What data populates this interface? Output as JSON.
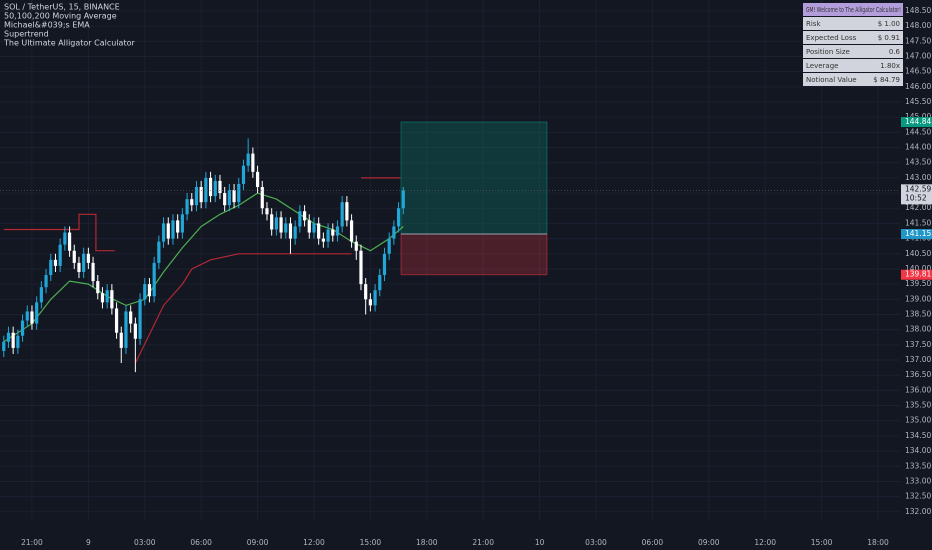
{
  "chart_data": {
    "type": "candlestick",
    "title": "SOL / TetherUS, 15, BINANCE",
    "indicators": [
      "50,100,200 Moving Average",
      "Michael&#039;s EMA",
      "Supertrend",
      "The Ultimate Alligator Calculator"
    ],
    "up_color": "#22a6d8",
    "down_color": "#ffffff",
    "xlim": [
      -1.7,
      46.17
    ],
    "ylim": [
      131.73,
      148.86
    ],
    "grid": true,
    "x": [
      -1.5,
      -1.25,
      -1,
      -0.75,
      -0.5,
      -0.25,
      0,
      0.25,
      0.5,
      0.75,
      1,
      1.25,
      1.5,
      1.75,
      2,
      2.25,
      2.5,
      2.75,
      3,
      3.25,
      3.5,
      3.75,
      4,
      4.25,
      4.5,
      4.75,
      5,
      5.25,
      5.5,
      5.75,
      6,
      6.25,
      6.5,
      6.75,
      7,
      7.25,
      7.5,
      7.75,
      8,
      8.25,
      8.5,
      8.75,
      9,
      9.25,
      9.5,
      9.75,
      10,
      10.25,
      10.5,
      10.75,
      11,
      11.25,
      11.5,
      11.75,
      12,
      12.25,
      12.5,
      12.75,
      13,
      13.25,
      13.5,
      13.75,
      14,
      14.25,
      14.5,
      14.75,
      15,
      15.25,
      15.5,
      15.75,
      16,
      16.25,
      16.5,
      16.75,
      17,
      17.25,
      17.5,
      17.75,
      18,
      18.25,
      18.5,
      18.75,
      19,
      19.25,
      19.5,
      19.75
    ],
    "ohlc": [
      [
        137.3,
        137.8,
        137.1,
        137.6
      ],
      [
        137.6,
        138.1,
        137.4,
        137.9
      ],
      [
        137.9,
        138.1,
        137.2,
        137.4
      ],
      [
        137.4,
        138.0,
        137.2,
        137.8
      ],
      [
        137.8,
        138.5,
        137.6,
        138.3
      ],
      [
        138.3,
        138.8,
        138.1,
        138.6
      ],
      [
        138.6,
        138.8,
        138.0,
        138.2
      ],
      [
        138.2,
        139.1,
        138.0,
        138.9
      ],
      [
        138.9,
        139.6,
        138.7,
        139.4
      ],
      [
        139.4,
        140.0,
        139.2,
        139.8
      ],
      [
        139.8,
        140.5,
        139.6,
        140.3
      ],
      [
        140.3,
        140.5,
        139.9,
        140.1
      ],
      [
        140.1,
        141.0,
        139.9,
        140.8
      ],
      [
        140.8,
        141.4,
        140.6,
        141.2
      ],
      [
        141.2,
        141.4,
        140.4,
        140.6
      ],
      [
        140.6,
        140.8,
        140.0,
        140.2
      ],
      [
        140.2,
        140.4,
        139.7,
        139.9
      ],
      [
        139.9,
        140.7,
        139.7,
        140.5
      ],
      [
        140.5,
        140.7,
        140.0,
        140.2
      ],
      [
        140.2,
        140.4,
        139.4,
        139.6
      ],
      [
        139.6,
        139.8,
        139.0,
        139.2
      ],
      [
        139.2,
        139.4,
        138.7,
        138.9
      ],
      [
        138.9,
        139.5,
        138.7,
        139.3
      ],
      [
        139.3,
        139.5,
        138.5,
        138.7
      ],
      [
        138.7,
        138.9,
        137.7,
        137.9
      ],
      [
        137.9,
        138.1,
        136.9,
        137.4
      ],
      [
        137.4,
        138.8,
        137.2,
        138.6
      ],
      [
        138.6,
        138.8,
        137.9,
        138.2
      ],
      [
        138.2,
        138.4,
        136.6,
        137.7
      ],
      [
        137.7,
        139.2,
        137.5,
        139.0
      ],
      [
        139.0,
        139.7,
        138.8,
        139.5
      ],
      [
        139.5,
        139.7,
        138.9,
        139.1
      ],
      [
        139.1,
        140.4,
        138.9,
        140.2
      ],
      [
        140.2,
        141.1,
        140.0,
        140.9
      ],
      [
        140.9,
        141.7,
        140.7,
        141.5
      ],
      [
        141.5,
        141.7,
        140.8,
        141.0
      ],
      [
        141.0,
        141.8,
        140.8,
        141.6
      ],
      [
        141.6,
        141.8,
        141.0,
        141.2
      ],
      [
        141.2,
        142.0,
        141.0,
        141.8
      ],
      [
        141.8,
        142.5,
        141.6,
        142.3
      ],
      [
        142.3,
        142.5,
        141.9,
        142.1
      ],
      [
        142.1,
        142.9,
        141.9,
        142.7
      ],
      [
        142.7,
        142.9,
        142.0,
        142.2
      ],
      [
        142.2,
        143.2,
        142.0,
        143.0
      ],
      [
        143.0,
        143.2,
        142.2,
        142.4
      ],
      [
        142.4,
        143.1,
        142.2,
        142.9
      ],
      [
        142.9,
        143.1,
        142.3,
        142.5
      ],
      [
        142.5,
        142.7,
        141.9,
        142.1
      ],
      [
        142.1,
        142.8,
        141.9,
        142.6
      ],
      [
        142.6,
        142.8,
        142.0,
        142.2
      ],
      [
        142.2,
        143.0,
        142.0,
        142.8
      ],
      [
        142.8,
        143.6,
        142.6,
        143.4
      ],
      [
        143.4,
        144.3,
        143.2,
        143.8
      ],
      [
        143.8,
        144.0,
        143.0,
        143.2
      ],
      [
        143.2,
        143.4,
        142.5,
        142.7
      ],
      [
        142.7,
        142.9,
        141.8,
        142.0
      ],
      [
        142.0,
        142.2,
        141.6,
        141.8
      ],
      [
        141.8,
        142.0,
        141.1,
        141.3
      ],
      [
        141.3,
        141.9,
        141.1,
        141.7
      ],
      [
        141.7,
        141.9,
        141.0,
        141.2
      ],
      [
        141.2,
        141.7,
        141.0,
        141.5
      ],
      [
        141.5,
        141.7,
        140.5,
        141.0
      ],
      [
        141.0,
        141.6,
        140.8,
        141.4
      ],
      [
        141.4,
        142.1,
        141.2,
        141.9
      ],
      [
        141.9,
        142.1,
        141.4,
        141.6
      ],
      [
        141.6,
        141.8,
        141.0,
        141.2
      ],
      [
        141.2,
        141.7,
        141.0,
        141.5
      ],
      [
        141.5,
        141.7,
        140.8,
        141.0
      ],
      [
        141.0,
        141.2,
        140.7,
        140.9
      ],
      [
        140.9,
        141.5,
        140.7,
        141.3
      ],
      [
        141.3,
        141.5,
        140.9,
        141.1
      ],
      [
        141.1,
        141.6,
        140.9,
        141.4
      ],
      [
        141.4,
        142.4,
        141.2,
        142.2
      ],
      [
        142.2,
        142.4,
        141.4,
        141.6
      ],
      [
        141.6,
        141.8,
        140.7,
        140.9
      ],
      [
        140.9,
        141.1,
        140.3,
        140.6
      ],
      [
        140.6,
        140.8,
        139.3,
        139.5
      ],
      [
        139.5,
        139.7,
        138.5,
        139.0
      ],
      [
        139.0,
        139.2,
        138.6,
        138.8
      ],
      [
        138.8,
        139.5,
        138.6,
        139.3
      ],
      [
        139.3,
        140.0,
        139.1,
        139.8
      ],
      [
        139.8,
        140.7,
        139.6,
        140.5
      ],
      [
        140.5,
        141.2,
        140.3,
        141.0
      ],
      [
        141.0,
        141.6,
        140.8,
        141.4
      ],
      [
        141.4,
        142.2,
        141.2,
        142.0
      ],
      [
        142.0,
        142.7,
        141.8,
        142.59
      ]
    ],
    "series": [
      {
        "color": "#4caf50",
        "x": [
          -1.5,
          0,
          1,
          2,
          3,
          4,
          5,
          6,
          7,
          8,
          9,
          10,
          11,
          12,
          13,
          14,
          15,
          16,
          17,
          18,
          19,
          19.75
        ],
        "values": [
          137.6,
          138.2,
          139.0,
          139.6,
          139.5,
          139.1,
          138.8,
          139.0,
          139.9,
          140.7,
          141.4,
          141.8,
          142.1,
          142.5,
          142.3,
          141.9,
          141.5,
          141.3,
          140.9,
          140.6,
          141.0,
          141.4
        ]
      },
      {
        "color": "#b22833",
        "x": [
          -1.5,
          2.5,
          2.5,
          3.4,
          3.4,
          4.4,
          4.5,
          5.5,
          7,
          8,
          8.5,
          9.5,
          11,
          12.5,
          14,
          15,
          16,
          17,
          17.5,
          17.5,
          19.6
        ],
        "values": [
          141.3,
          141.3,
          141.8,
          141.8,
          140.6,
          140.6,
          null,
          136.9,
          138.8,
          139.5,
          140.0,
          140.3,
          140.5,
          140.5,
          140.5,
          140.5,
          140.5,
          140.5,
          null,
          143.0,
          143.0
        ]
      }
    ],
    "countdown": "10:52",
    "position": {
      "x": [
        19.63,
        27.39
      ],
      "target": 144.84,
      "entry": 141.15,
      "stop": 139.81
    },
    "xticks": [
      {
        "value": 0,
        "label": "21:00"
      },
      {
        "value": 3,
        "label": "9"
      },
      {
        "value": 6,
        "label": "03:00"
      },
      {
        "value": 9,
        "label": "06:00"
      },
      {
        "value": 12,
        "label": "09:00"
      },
      {
        "value": 15,
        "label": "12:00"
      },
      {
        "value": 18,
        "label": "15:00"
      },
      {
        "value": 21,
        "label": "18:00"
      },
      {
        "value": 24,
        "label": "21:00"
      },
      {
        "value": 27,
        "label": "10"
      },
      {
        "value": 30,
        "label": "03:00"
      },
      {
        "value": 33,
        "label": "06:00"
      },
      {
        "value": 36,
        "label": "09:00"
      },
      {
        "value": 39,
        "label": "12:00"
      },
      {
        "value": 42,
        "label": "15:00"
      },
      {
        "value": 45,
        "label": "18:00"
      }
    ],
    "yticks": [
      {
        "value": 132,
        "label": "132.00"
      },
      {
        "value": 132.5,
        "label": "132.50"
      },
      {
        "value": 133,
        "label": "133.00"
      },
      {
        "value": 133.5,
        "label": "133.50"
      },
      {
        "value": 134,
        "label": "134.00"
      },
      {
        "value": 134.5,
        "label": "134.50"
      },
      {
        "value": 135,
        "label": "135.00"
      },
      {
        "value": 135.5,
        "label": "135.50"
      },
      {
        "value": 136,
        "label": "136.00"
      },
      {
        "value": 136.5,
        "label": "136.50"
      },
      {
        "value": 137,
        "label": "137.00"
      },
      {
        "value": 137.5,
        "label": "137.50"
      },
      {
        "value": 138,
        "label": "138.00"
      },
      {
        "value": 138.5,
        "label": "138.50"
      },
      {
        "value": 139,
        "label": "139.00"
      },
      {
        "value": 139.5,
        "label": "139.50"
      },
      {
        "value": 140,
        "label": "140.00"
      },
      {
        "value": 140.5,
        "label": "140.50"
      },
      {
        "value": 141,
        "label": "141.00"
      },
      {
        "value": 141.5,
        "label": "141.50"
      },
      {
        "value": 142,
        "label": "142.00"
      },
      {
        "value": 142.5,
        "label": "142.50"
      },
      {
        "value": 143,
        "label": "143.00"
      },
      {
        "value": 143.5,
        "label": "143.50"
      },
      {
        "value": 144,
        "label": "144.00"
      },
      {
        "value": 144.5,
        "label": "144.50"
      },
      {
        "value": 145,
        "label": "145.00"
      },
      {
        "value": 145.5,
        "label": "145.50"
      },
      {
        "value": 146,
        "label": "146.00"
      },
      {
        "value": 146.5,
        "label": "146.50"
      },
      {
        "value": 147,
        "label": "147.00"
      },
      {
        "value": 147.5,
        "label": "147.50"
      },
      {
        "value": 148,
        "label": "148.00"
      },
      {
        "value": 148.5,
        "label": "148.50"
      }
    ],
    "calculator": {
      "title": "GM! Welcome to The Alligator Calculator!",
      "rows": [
        [
          "Risk",
          "$ 1.00"
        ],
        [
          "Expected Loss",
          "$ 0.91"
        ],
        [
          "Position Size",
          "0.6"
        ],
        [
          "Leverage",
          "1.80x"
        ],
        [
          "Notional Value",
          "$ 84.79"
        ]
      ]
    }
  }
}
